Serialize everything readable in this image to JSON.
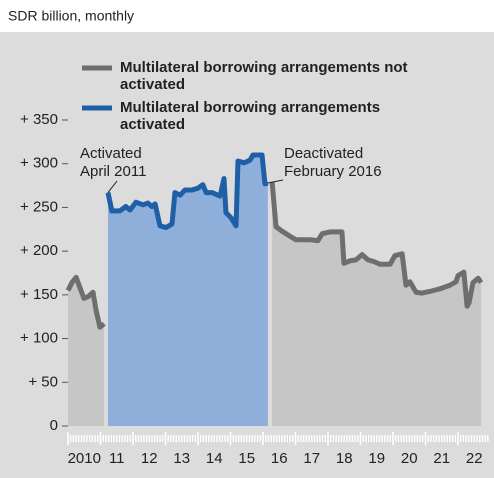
{
  "chart_data": {
    "type": "line",
    "subtitle": "SDR billion, monthly",
    "x": [
      2010.0,
      2010.12,
      2010.25,
      2010.37,
      2010.49,
      2010.62,
      2010.77,
      2010.86,
      2010.98,
      2011.11,
      2011.23,
      2011.35,
      2011.6,
      2011.78,
      2011.91,
      2012.09,
      2012.31,
      2012.46,
      2012.58,
      2012.68,
      2012.83,
      2013.02,
      2013.2,
      2013.29,
      2013.45,
      2013.6,
      2013.82,
      2014.0,
      2014.15,
      2014.25,
      2014.43,
      2014.68,
      2014.8,
      2014.86,
      2015.02,
      2015.17,
      2015.23,
      2015.42,
      2015.6,
      2015.69,
      2015.97,
      2016.06,
      2016.15,
      2016.28,
      2016.4,
      2016.58,
      2016.83,
      2017.02,
      2017.2,
      2017.45,
      2017.69,
      2017.82,
      2018.06,
      2018.43,
      2018.49,
      2018.68,
      2018.86,
      2019.05,
      2019.23,
      2019.42,
      2019.6,
      2019.91,
      2020.06,
      2020.28,
      2020.4,
      2020.52,
      2020.71,
      2020.89,
      2021.14,
      2021.45,
      2021.75,
      2021.94,
      2022.0,
      2022.18,
      2022.28,
      2022.34,
      2022.46,
      2022.62,
      2022.71
    ],
    "series": [
      {
        "name": "Multilateral borrowing arrangements not activated",
        "color": "#6e6e6e",
        "fill": "#c6c6c6",
        "values": [
          155,
          164,
          170,
          158,
          146,
          148,
          153,
          133,
          113,
          117,
          null,
          null,
          null,
          null,
          null,
          null,
          null,
          null,
          null,
          null,
          null,
          null,
          null,
          null,
          null,
          null,
          null,
          null,
          null,
          null,
          null,
          null,
          null,
          null,
          null,
          null,
          null,
          null,
          null,
          null,
          null,
          null,
          null,
          279,
          228,
          223,
          217,
          213,
          213,
          213,
          212,
          220,
          222,
          222,
          186,
          189,
          190,
          196,
          190,
          188,
          185,
          185,
          195,
          197,
          161,
          165,
          153,
          152,
          154,
          157,
          161,
          165,
          172,
          176,
          137,
          141,
          164,
          169,
          164
        ]
      },
      {
        "name": "Multilateral borrowing arrangements activated",
        "color": "#1f5fa8",
        "fill": "#8eafd9",
        "values": [
          null,
          null,
          null,
          null,
          null,
          null,
          null,
          null,
          null,
          null,
          267,
          246,
          246,
          251,
          247,
          256,
          253,
          255,
          251,
          254,
          229,
          227,
          231,
          267,
          264,
          270,
          270,
          272,
          276,
          267,
          267,
          263,
          283,
          244,
          238,
          229,
          303,
          301,
          304,
          310,
          310,
          277,
          278,
          null,
          null,
          null,
          null,
          null,
          null,
          null,
          null,
          null,
          null,
          null,
          null,
          null,
          null,
          null,
          null,
          null,
          null,
          null,
          null,
          null,
          null,
          null,
          null,
          null,
          null,
          null,
          null,
          null,
          null,
          null,
          null,
          null,
          null,
          null,
          null
        ]
      }
    ],
    "annotations": [
      {
        "text": "Activated April 2011",
        "x": 2011.23,
        "y": 267
      },
      {
        "text": "Deactivated February 2016",
        "x": 2016.15,
        "y": 278
      }
    ],
    "xlim": [
      2010,
      2023
    ],
    "xticks": [
      {
        "value": 2010,
        "label": "2010"
      },
      {
        "value": 2011,
        "label": "11"
      },
      {
        "value": 2012,
        "label": "12"
      },
      {
        "value": 2013,
        "label": "13"
      },
      {
        "value": 2014,
        "label": "14"
      },
      {
        "value": 2015,
        "label": "15"
      },
      {
        "value": 2016,
        "label": "16"
      },
      {
        "value": 2017,
        "label": "17"
      },
      {
        "value": 2018,
        "label": "18"
      },
      {
        "value": 2019,
        "label": "19"
      },
      {
        "value": 2020,
        "label": "20"
      },
      {
        "value": 2021,
        "label": "21"
      },
      {
        "value": 2022,
        "label": "22"
      }
    ],
    "ylim": [
      0,
      350
    ],
    "yticks": [
      0,
      {
        "value": 50,
        "label": "+  50"
      },
      {
        "value": 100,
        "label": "+ 100"
      },
      {
        "value": 150,
        "label": "+ 150"
      },
      {
        "value": 200,
        "label": "+ 200"
      },
      {
        "value": 250,
        "label": "+ 250"
      },
      {
        "value": 300,
        "label": "+ 300"
      },
      {
        "value": 350,
        "label": "+ 350"
      }
    ],
    "legend": "top-left"
  }
}
